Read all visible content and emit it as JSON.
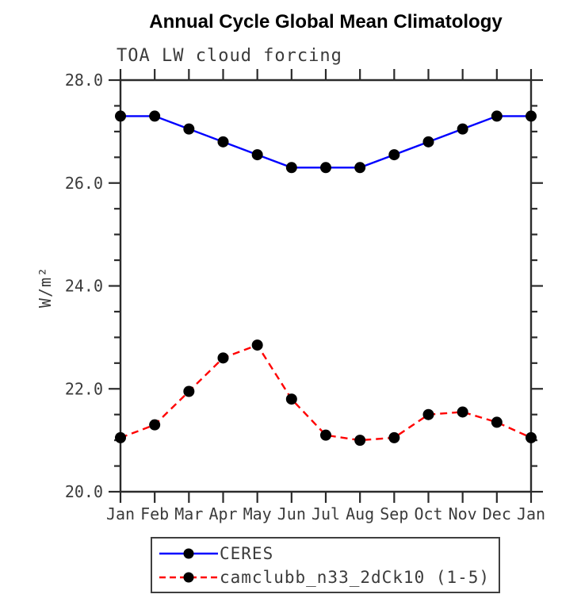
{
  "chart_data": {
    "type": "line",
    "title": "Annual Cycle Global Mean Climatology",
    "subtitle": "TOA LW cloud forcing",
    "ylabel": "W/m²",
    "xlabel": "",
    "categories": [
      "Jan",
      "Feb",
      "Mar",
      "Apr",
      "May",
      "Jun",
      "Jul",
      "Aug",
      "Sep",
      "Oct",
      "Nov",
      "Dec",
      "Jan"
    ],
    "ylim": [
      20.0,
      28.0
    ],
    "ytick_major": [
      20.0,
      22.0,
      24.0,
      26.0,
      28.0
    ],
    "ytick_minor_step": 0.5,
    "grid": false,
    "legend_position": "bottom",
    "axis_color": "#2b2b2b",
    "text_color": "#3b3b3b",
    "series": [
      {
        "name": "CERES",
        "color": "#0000ff",
        "style": "solid",
        "marker": "circle",
        "marker_color": "#000000",
        "values": [
          27.3,
          27.3,
          27.05,
          26.8,
          26.55,
          26.3,
          26.3,
          26.3,
          26.55,
          26.8,
          27.05,
          27.3,
          27.3
        ]
      },
      {
        "name": "camclubb_n33_2dCk10 (1-5)",
        "color": "#ff0000",
        "style": "dashed",
        "marker": "circle",
        "marker_color": "#000000",
        "values": [
          21.05,
          21.3,
          21.95,
          22.6,
          22.85,
          21.8,
          21.1,
          21.0,
          21.05,
          21.5,
          21.55,
          21.35,
          21.05
        ]
      }
    ]
  }
}
